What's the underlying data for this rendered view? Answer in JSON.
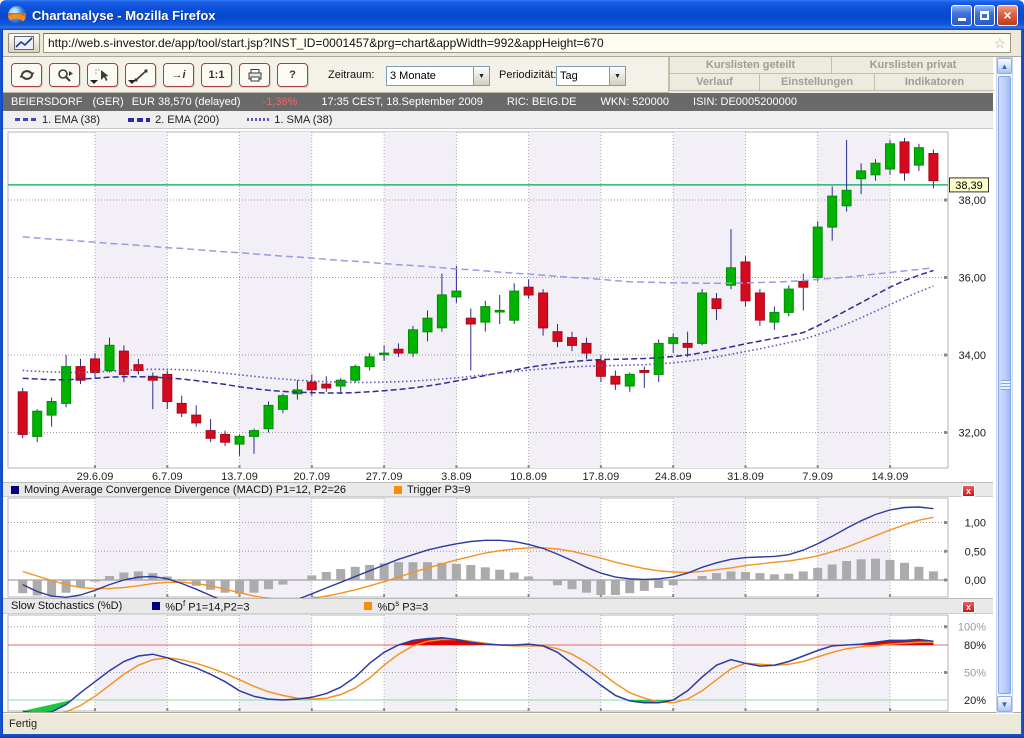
{
  "window": {
    "title": "Chartanalyse - Mozilla Firefox"
  },
  "browser": {
    "url": "http://web.s-investor.de/app/tool/start.jsp?INST_ID=0001457&prg=chart&appWidth=992&appHeight=670"
  },
  "toolbar": {
    "tools": [
      {
        "name": "reload-tool",
        "glyph": "",
        "caret": false
      },
      {
        "name": "zoom-tool",
        "glyph": "",
        "caret": false
      },
      {
        "name": "pointer-tool",
        "glyph": "",
        "caret": true
      },
      {
        "name": "line-draw-tool",
        "glyph": "",
        "caret": true
      },
      {
        "name": "info-arrow-tool",
        "glyph": "→i",
        "caret": false
      },
      {
        "name": "one-to-one-tool",
        "glyph": "1:1",
        "caret": false
      },
      {
        "name": "print-tool",
        "glyph": "",
        "caret": false
      },
      {
        "name": "help-tool",
        "glyph": "?",
        "caret": false
      }
    ],
    "zeitraum_label": "Zeitraum:",
    "zeitraum_value": "3 Monate",
    "periodizitaet_label": "Periodizität:",
    "periodizitaet_value": "Tag",
    "menu_row1": [
      "Kurslisten geteilt",
      "Kurslisten privat"
    ],
    "menu_row2": [
      "Verlauf",
      "Einstellungen",
      "Indikatoren"
    ]
  },
  "info_bar": {
    "name": "BEIERSDORF",
    "exchange": "(GER)",
    "price": "EUR 38,570 (delayed)",
    "change": "-1,36%",
    "timestamp": "17:35 CEST, 18.September 2009",
    "ric": "RIC: BEIG.DE",
    "wkn": "WKN: 520000",
    "isin": "ISIN: DE0005200000",
    "change_color": "#e86a6a"
  },
  "legend": [
    {
      "label": "1. EMA (38)"
    },
    {
      "label": "2. EMA (200)"
    },
    {
      "label": "1. SMA (38)"
    }
  ],
  "status_bar": {
    "text": "Fertig"
  },
  "colors": {
    "candle_up": "#00b300",
    "candle_up_edge": "#008f00",
    "candle_down": "#d50a1e",
    "candle_down_edge": "#a90816",
    "wick": "#2c2c8c",
    "ema200": "#9a9ce0",
    "ema38": "#2e2e96",
    "sma38": "#5b5bb4",
    "macd_line": "#2c3ba0",
    "trigger_line": "#f79222",
    "histogram": "#ababab",
    "price_line": "#00a651",
    "band": "#f2eff6",
    "stoch_fast": "#2c3ba0",
    "stoch_slow": "#f79222",
    "overbought_line": "#e06868",
    "oversold_line": "#8fd8a8",
    "overbought_fill": "#e00000",
    "oversold_fill": "#19c840",
    "tag_bg": "#ffffc8"
  },
  "chart_data": [
    {
      "type": "candlestick",
      "title": "BEIERSDORF Kurs (Tag, 3 Monate)",
      "x_axis": {
        "labels": [
          {
            "day": 5,
            "text": "29.6.09"
          },
          {
            "day": 10,
            "text": "6.7.09"
          },
          {
            "day": 15,
            "text": "13.7.09"
          },
          {
            "day": 20,
            "text": "20.7.09"
          },
          {
            "day": 25,
            "text": "27.7.09"
          },
          {
            "day": 30,
            "text": "3.8.09"
          },
          {
            "day": 35,
            "text": "10.8.09"
          },
          {
            "day": 40,
            "text": "17.8.09"
          },
          {
            "day": 45,
            "text": "24.8.09"
          },
          {
            "day": 50,
            "text": "31.8.09"
          },
          {
            "day": 55,
            "text": "7.9.09"
          },
          {
            "day": 60,
            "text": "14.9.09"
          }
        ]
      },
      "week_shade_days": [
        5,
        15,
        25,
        35,
        45,
        55
      ],
      "y_axis": {
        "ticks": [
          {
            "value": 38,
            "label": "38,00"
          },
          {
            "value": 36,
            "label": "36,00"
          },
          {
            "value": 34,
            "label": "34,00"
          },
          {
            "value": 32,
            "label": "32,00"
          }
        ]
      },
      "price_line": {
        "value": 38.39,
        "label": "38,39"
      },
      "candles": [
        [
          33.05,
          33.15,
          31.85,
          31.95
        ],
        [
          31.9,
          32.6,
          31.75,
          32.55
        ],
        [
          32.45,
          32.9,
          32.15,
          32.8
        ],
        [
          32.75,
          34.0,
          32.65,
          33.7
        ],
        [
          33.7,
          33.9,
          33.25,
          33.35
        ],
        [
          33.9,
          34.05,
          33.4,
          33.55
        ],
        [
          33.6,
          34.45,
          33.55,
          34.25
        ],
        [
          34.1,
          34.25,
          33.3,
          33.5
        ],
        [
          33.75,
          33.9,
          33.5,
          33.6
        ],
        [
          33.45,
          33.55,
          32.6,
          33.35
        ],
        [
          33.5,
          33.6,
          32.6,
          32.8
        ],
        [
          32.75,
          32.95,
          32.4,
          32.5
        ],
        [
          32.45,
          32.7,
          32.15,
          32.25
        ],
        [
          32.05,
          32.35,
          31.75,
          31.85
        ],
        [
          31.95,
          32.05,
          31.65,
          31.75
        ],
        [
          31.7,
          31.95,
          31.4,
          31.9
        ],
        [
          31.9,
          32.1,
          31.45,
          32.05
        ],
        [
          32.1,
          32.8,
          32.0,
          32.7
        ],
        [
          32.6,
          33.0,
          32.5,
          32.95
        ],
        [
          33.0,
          33.35,
          32.85,
          33.1
        ],
        [
          33.3,
          33.5,
          32.95,
          33.1
        ],
        [
          33.25,
          33.45,
          33.05,
          33.15
        ],
        [
          33.2,
          33.4,
          33.0,
          33.35
        ],
        [
          33.35,
          33.75,
          33.3,
          33.7
        ],
        [
          33.7,
          34.05,
          33.6,
          33.95
        ],
        [
          34.05,
          34.25,
          33.85,
          34.05
        ],
        [
          34.15,
          34.3,
          33.95,
          34.05
        ],
        [
          34.05,
          34.75,
          33.95,
          34.65
        ],
        [
          34.6,
          35.15,
          34.35,
          34.95
        ],
        [
          34.7,
          36.1,
          34.6,
          35.55
        ],
        [
          35.5,
          36.3,
          35.35,
          35.65
        ],
        [
          34.95,
          35.2,
          33.6,
          34.8
        ],
        [
          34.85,
          35.4,
          34.6,
          35.25
        ],
        [
          35.15,
          35.55,
          34.8,
          35.15
        ],
        [
          34.9,
          35.85,
          34.8,
          35.65
        ],
        [
          35.75,
          35.95,
          35.45,
          35.55
        ],
        [
          35.6,
          35.7,
          34.5,
          34.7
        ],
        [
          34.6,
          34.8,
          34.2,
          34.35
        ],
        [
          34.45,
          34.6,
          34.1,
          34.25
        ],
        [
          34.3,
          34.45,
          33.9,
          34.05
        ],
        [
          33.85,
          34.0,
          33.3,
          33.45
        ],
        [
          33.45,
          33.6,
          33.1,
          33.25
        ],
        [
          33.2,
          33.55,
          33.05,
          33.5
        ],
        [
          33.6,
          33.7,
          33.15,
          33.55
        ],
        [
          33.5,
          34.4,
          33.3,
          34.3
        ],
        [
          34.3,
          34.55,
          34.05,
          34.45
        ],
        [
          34.3,
          34.6,
          33.95,
          34.2
        ],
        [
          34.3,
          35.7,
          34.25,
          35.6
        ],
        [
          35.45,
          35.6,
          34.9,
          35.2
        ],
        [
          35.8,
          37.25,
          35.7,
          36.25
        ],
        [
          36.4,
          36.55,
          35.25,
          35.4
        ],
        [
          35.6,
          35.7,
          34.75,
          34.9
        ],
        [
          34.85,
          35.25,
          34.65,
          35.1
        ],
        [
          35.1,
          35.8,
          35.0,
          35.7
        ],
        [
          35.9,
          36.1,
          35.15,
          35.75
        ],
        [
          36.0,
          37.45,
          35.9,
          37.3
        ],
        [
          37.3,
          38.35,
          36.95,
          38.1
        ],
        [
          37.85,
          39.55,
          37.7,
          38.25
        ],
        [
          38.55,
          38.95,
          38.15,
          38.75
        ],
        [
          38.65,
          39.05,
          38.5,
          38.95
        ],
        [
          38.8,
          39.55,
          38.65,
          39.45
        ],
        [
          39.5,
          39.6,
          38.5,
          38.7
        ],
        [
          38.9,
          39.45,
          38.75,
          39.35
        ],
        [
          39.2,
          39.3,
          38.3,
          38.5
        ]
      ],
      "overlays": {
        "ema38": [
          33.4,
          33.38,
          33.36,
          33.36,
          33.38,
          33.4,
          33.43,
          33.44,
          33.44,
          33.43,
          33.41,
          33.38,
          33.34,
          33.29,
          33.24,
          33.18,
          33.13,
          33.09,
          33.06,
          33.04,
          33.03,
          33.02,
          33.02,
          33.03,
          33.05,
          33.08,
          33.11,
          33.15,
          33.2,
          33.26,
          33.33,
          33.4,
          33.47,
          33.54,
          33.61,
          33.68,
          33.74,
          33.79,
          33.83,
          33.86,
          33.88,
          33.89,
          33.9,
          33.91,
          33.93,
          33.96,
          34.0,
          34.06,
          34.13,
          34.21,
          34.29,
          34.36,
          34.43,
          34.5,
          34.58,
          34.75,
          34.95,
          35.15,
          35.35,
          35.55,
          35.75,
          35.92,
          36.06,
          36.18
        ],
        "ema200": [
          37.05,
          37.02,
          36.99,
          36.97,
          36.94,
          36.91,
          36.88,
          36.86,
          36.83,
          36.8,
          36.77,
          36.75,
          36.72,
          36.69,
          36.66,
          36.64,
          36.61,
          36.58,
          36.55,
          36.53,
          36.5,
          36.47,
          36.44,
          36.42,
          36.39,
          36.36,
          36.33,
          36.31,
          36.28,
          36.25,
          36.22,
          36.2,
          36.17,
          36.14,
          36.11,
          36.09,
          36.06,
          36.03,
          36.0,
          35.98,
          35.95,
          35.92,
          35.89,
          35.88,
          35.87,
          35.86,
          35.86,
          35.85,
          35.85,
          35.85,
          35.86,
          35.87,
          35.88,
          35.9,
          35.92,
          35.95,
          35.98,
          36.01,
          36.05,
          36.09,
          36.13,
          36.17,
          36.21,
          36.25
        ],
        "sma38": [
          33.6,
          33.58,
          33.56,
          33.55,
          33.55,
          33.56,
          33.58,
          33.6,
          33.62,
          33.63,
          33.63,
          33.62,
          33.6,
          33.57,
          33.53,
          33.49,
          33.45,
          33.41,
          33.38,
          33.35,
          33.33,
          33.31,
          33.3,
          33.29,
          33.29,
          33.3,
          33.31,
          33.33,
          33.35,
          33.38,
          33.41,
          33.45,
          33.49,
          33.53,
          33.57,
          33.61,
          33.64,
          33.67,
          33.69,
          33.71,
          33.72,
          33.73,
          33.74,
          33.75,
          33.77,
          33.8,
          33.84,
          33.89,
          33.95,
          34.02,
          34.09,
          34.16,
          34.24,
          34.32,
          34.41,
          34.52,
          34.65,
          34.8,
          34.96,
          35.13,
          35.3,
          35.47,
          35.63,
          35.78
        ]
      }
    },
    {
      "type": "macd",
      "legend_macd": "Moving Average Convergence Divergence (MACD) P1=12, P2=26",
      "legend_trigger": "Trigger P3=9",
      "y_axis": {
        "ticks": [
          {
            "value": 1.0,
            "label": "1,00"
          },
          {
            "value": 0.5,
            "label": "0,50"
          },
          {
            "value": 0.0,
            "label": "0,00"
          }
        ]
      },
      "macd": [
        -0.08,
        -0.2,
        -0.28,
        -0.3,
        -0.26,
        -0.18,
        -0.08,
        0.0,
        0.05,
        0.06,
        0.02,
        -0.06,
        -0.16,
        -0.27,
        -0.38,
        -0.46,
        -0.5,
        -0.48,
        -0.42,
        -0.34,
        -0.24,
        -0.14,
        -0.04,
        0.06,
        0.16,
        0.26,
        0.36,
        0.44,
        0.52,
        0.58,
        0.63,
        0.67,
        0.69,
        0.69,
        0.67,
        0.62,
        0.55,
        0.45,
        0.34,
        0.22,
        0.12,
        0.05,
        0.02,
        0.01,
        0.02,
        0.05,
        0.12,
        0.22,
        0.3,
        0.36,
        0.39,
        0.4,
        0.41,
        0.44,
        0.52,
        0.63,
        0.76,
        0.9,
        1.03,
        1.14,
        1.22,
        1.26,
        1.27,
        1.24
      ],
      "trigger": [
        0.15,
        0.07,
        -0.01,
        -0.08,
        -0.13,
        -0.15,
        -0.15,
        -0.13,
        -0.1,
        -0.06,
        -0.04,
        -0.04,
        -0.06,
        -0.1,
        -0.16,
        -0.22,
        -0.28,
        -0.32,
        -0.34,
        -0.34,
        -0.32,
        -0.28,
        -0.23,
        -0.17,
        -0.1,
        -0.03,
        0.05,
        0.13,
        0.21,
        0.28,
        0.35,
        0.41,
        0.47,
        0.51,
        0.54,
        0.56,
        0.56,
        0.54,
        0.5,
        0.44,
        0.38,
        0.31,
        0.25,
        0.2,
        0.16,
        0.14,
        0.13,
        0.15,
        0.18,
        0.21,
        0.25,
        0.28,
        0.31,
        0.33,
        0.37,
        0.42,
        0.49,
        0.57,
        0.67,
        0.77,
        0.87,
        0.96,
        1.04,
        1.09
      ],
      "histogram": [
        -0.23,
        -0.27,
        -0.27,
        -0.22,
        -0.13,
        -0.03,
        0.07,
        0.13,
        0.15,
        0.12,
        0.06,
        -0.02,
        -0.1,
        -0.17,
        -0.22,
        -0.24,
        -0.22,
        -0.16,
        -0.08,
        0.0,
        0.08,
        0.14,
        0.19,
        0.23,
        0.26,
        0.29,
        0.31,
        0.31,
        0.31,
        0.3,
        0.28,
        0.26,
        0.22,
        0.18,
        0.13,
        0.06,
        -0.01,
        -0.09,
        -0.16,
        -0.22,
        -0.26,
        -0.26,
        -0.23,
        -0.19,
        -0.14,
        -0.09,
        -0.01,
        0.07,
        0.12,
        0.15,
        0.14,
        0.12,
        0.1,
        0.11,
        0.15,
        0.21,
        0.27,
        0.33,
        0.36,
        0.37,
        0.35,
        0.3,
        0.23,
        0.15
      ]
    },
    {
      "type": "stochastics",
      "title": "Slow Stochastics (%D)",
      "legend1_prefix": "%D",
      "legend1_sup": "f",
      "legend1_rest": " P1=14,P2=3",
      "legend2_prefix": "%D",
      "legend2_sup": "s",
      "legend2_rest": " P3=3",
      "y_axis": {
        "ticks": [
          {
            "value": 100,
            "label": "100%",
            "muted": true
          },
          {
            "value": 80,
            "label": "80%",
            "muted": false
          },
          {
            "value": 50,
            "label": "50%",
            "muted": true
          },
          {
            "value": 20,
            "label": "20%",
            "muted": false
          }
        ]
      },
      "overbought": 80,
      "oversold": 20,
      "d_fast": [
        8,
        5,
        7,
        15,
        28,
        40,
        52,
        62,
        68,
        70,
        66,
        60,
        55,
        48,
        40,
        30,
        24,
        21,
        20,
        21,
        23,
        27,
        34,
        45,
        60,
        72,
        80,
        85,
        87,
        88,
        86,
        83,
        81,
        80,
        80,
        81,
        79,
        72,
        60,
        48,
        36,
        25,
        19,
        17,
        17,
        20,
        30,
        45,
        58,
        64,
        60,
        57,
        58,
        62,
        68,
        74,
        79,
        80,
        81,
        83,
        85,
        85,
        86,
        84
      ],
      "d_slow": [
        3,
        2,
        3,
        7,
        14,
        24,
        36,
        48,
        58,
        64,
        66,
        64,
        60,
        55,
        49,
        42,
        35,
        29,
        25,
        22,
        21,
        22,
        26,
        33,
        44,
        58,
        70,
        79,
        84,
        86,
        86,
        84,
        82,
        80,
        79,
        79,
        79,
        76,
        70,
        61,
        50,
        38,
        28,
        22,
        18,
        17,
        21,
        30,
        42,
        54,
        60,
        59,
        58,
        59,
        62,
        67,
        72,
        76,
        78,
        79,
        81,
        82,
        83,
        83
      ]
    }
  ]
}
